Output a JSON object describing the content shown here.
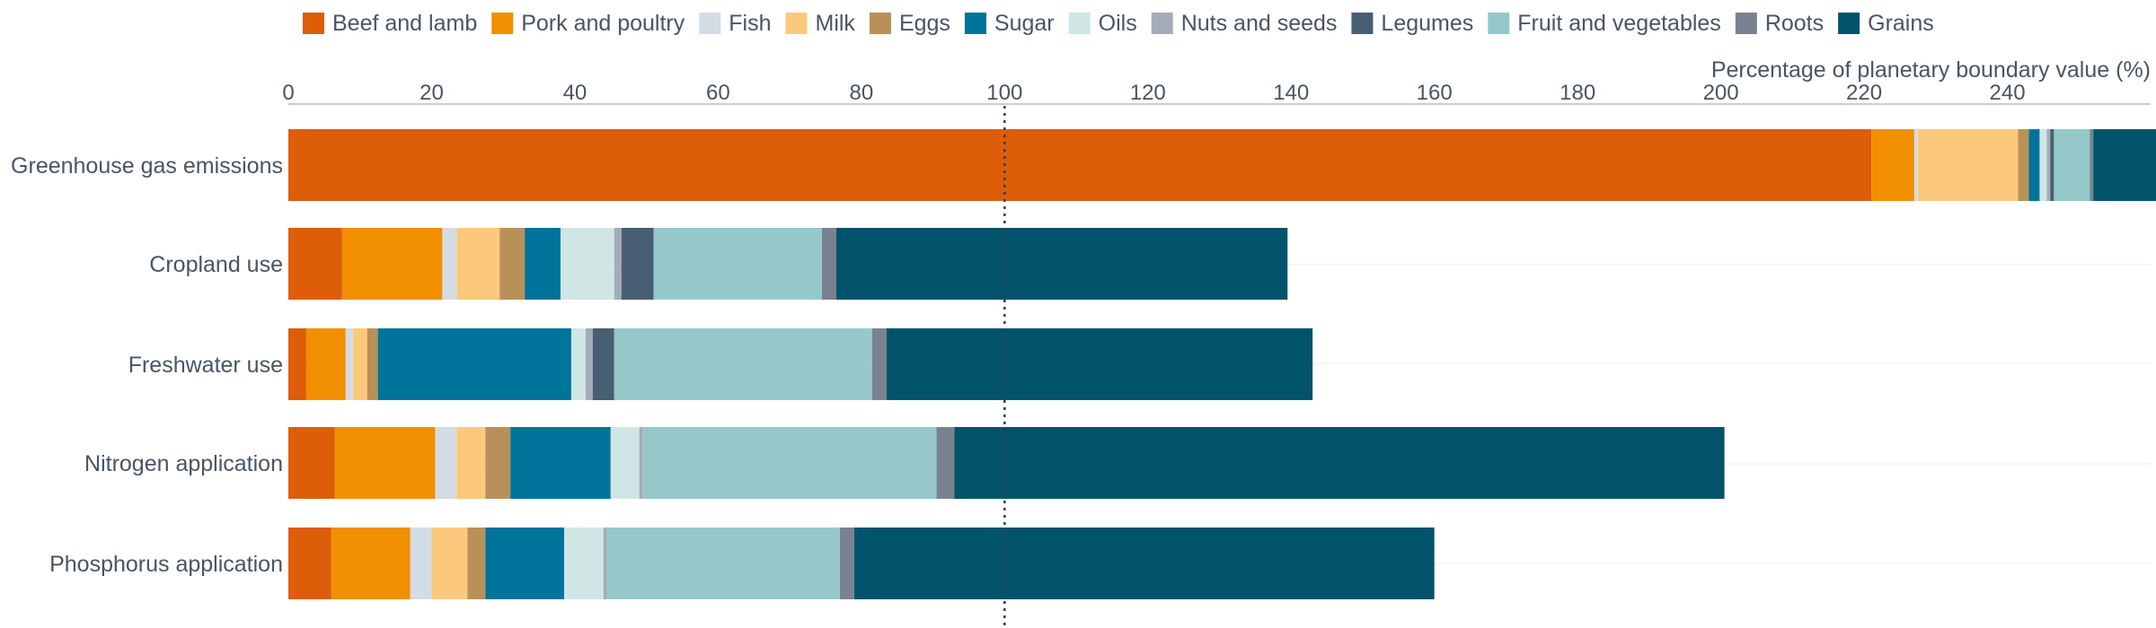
{
  "chart_data": {
    "type": "bar",
    "orientation": "horizontal",
    "stacked": true,
    "title": "",
    "xlabel": "Percentage of planetary boundary value (%)",
    "ylabel": "",
    "xlim": [
      0,
      260
    ],
    "x_ticks": [
      0,
      20,
      40,
      60,
      80,
      100,
      120,
      140,
      160,
      180,
      200,
      220,
      240
    ],
    "reference_line": {
      "value": 100,
      "style": "dotted"
    },
    "grid": "horizontal-light",
    "legend_placement": "top",
    "categories": [
      "Greenhouse gas emissions",
      "Cropland use",
      "Freshwater use",
      "Nitrogen application",
      "Phosphorus application"
    ],
    "series": [
      {
        "name": "Beef and lamb",
        "color": "#dd5d09",
        "values": [
          221,
          7.5,
          2.5,
          6.5,
          6
        ]
      },
      {
        "name": "Pork and poultry",
        "color": "#f28f00",
        "values": [
          6,
          14,
          5.5,
          14,
          11
        ]
      },
      {
        "name": "Fish",
        "color": "#d4dce6",
        "values": [
          0.5,
          2,
          1,
          3,
          3
        ]
      },
      {
        "name": "Milk",
        "color": "#fcc97c",
        "values": [
          14,
          6,
          2,
          4,
          5
        ]
      },
      {
        "name": "Eggs",
        "color": "#b99158",
        "values": [
          1.5,
          3.5,
          1.5,
          3.5,
          2.5
        ]
      },
      {
        "name": "Sugar",
        "color": "#00749a",
        "values": [
          1.5,
          5,
          27,
          14,
          11
        ]
      },
      {
        "name": "Oils",
        "color": "#d0e6e5",
        "values": [
          1,
          7.5,
          2,
          4,
          5.5
        ]
      },
      {
        "name": "Nuts and seeds",
        "color": "#a3acb7",
        "values": [
          0.5,
          1,
          1,
          0.5,
          0.5
        ]
      },
      {
        "name": "Legumes",
        "color": "#485e72",
        "values": [
          0.5,
          4.5,
          3,
          0,
          0
        ]
      },
      {
        "name": "Fruit and vegetables",
        "color": "#95c9c9",
        "values": [
          5,
          23.5,
          36,
          41,
          32.5
        ]
      },
      {
        "name": "Roots",
        "color": "#7a8290",
        "values": [
          0.5,
          2,
          2,
          2.5,
          2
        ]
      },
      {
        "name": "Grains",
        "color": "#01536c",
        "values": [
          9,
          63,
          59.5,
          107.5,
          81
        ]
      }
    ]
  }
}
